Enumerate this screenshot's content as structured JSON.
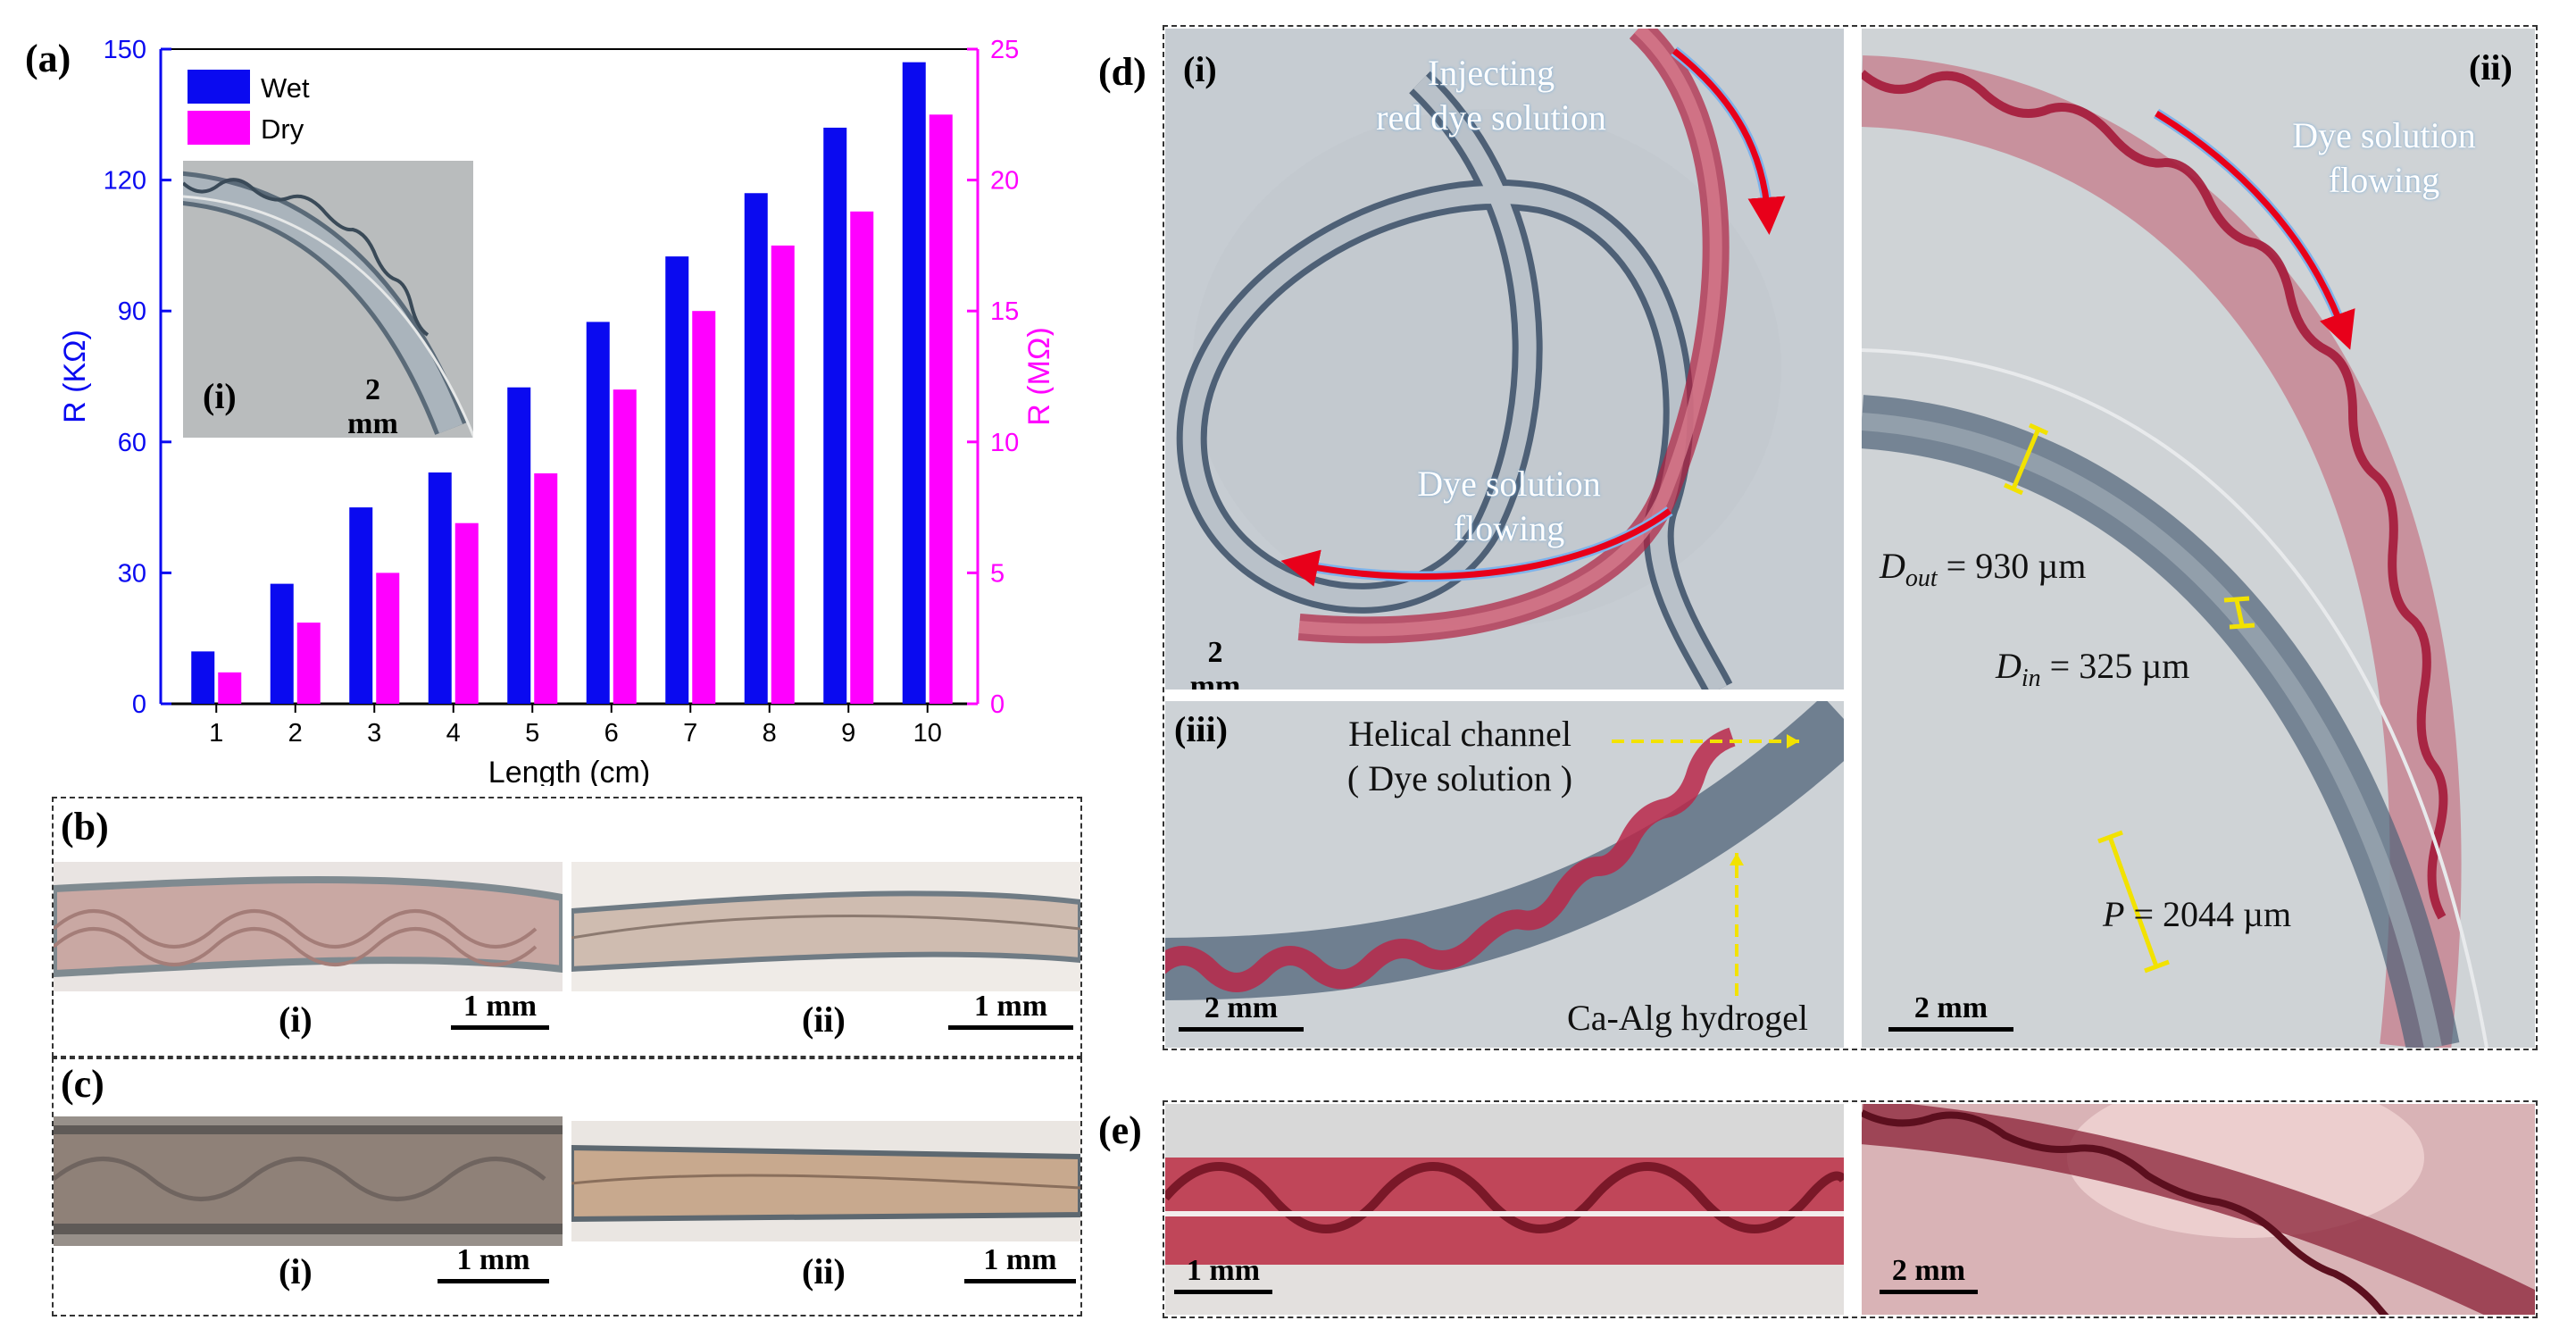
{
  "panels": {
    "a": "(a)",
    "b": "(b)",
    "c": "(c)",
    "d": "(d)",
    "e": "(e)"
  },
  "subpanels": {
    "i": "(i)",
    "ii": "(ii)",
    "iii": "(iii)"
  },
  "scale_labels": {
    "mm1": "1 mm",
    "mm2": "2 mm"
  },
  "chart_data": {
    "type": "bar",
    "categories": [
      "1",
      "2",
      "3",
      "4",
      "5",
      "6",
      "7",
      "8",
      "9",
      "10"
    ],
    "series": [
      {
        "name": "Wet",
        "axis": "left",
        "color": "#0a0af0",
        "values": [
          12,
          27.5,
          45,
          53,
          72.5,
          87.5,
          102.5,
          117,
          132,
          147
        ]
      },
      {
        "name": "Dry",
        "axis": "right",
        "color": "#ff00ff",
        "values": [
          1.2,
          3.1,
          5.0,
          6.9,
          8.8,
          12.0,
          15.0,
          17.5,
          18.8,
          22.5
        ]
      }
    ],
    "xlabel": "Length (cm)",
    "ylabel_left": "R (KΩ)",
    "ylabel_right": "R (MΩ)",
    "ylim_left": [
      0,
      150
    ],
    "ylim_right": [
      0,
      25
    ],
    "yticks_left": [
      "0",
      "30",
      "60",
      "90",
      "120",
      "150"
    ],
    "yticks_right": [
      "0",
      "5",
      "10",
      "15",
      "20",
      "25"
    ],
    "left_axis_color": "#0a0af0",
    "right_axis_color": "#ff00ff"
  },
  "inset_a": {
    "label": "(i)",
    "scale": "2 mm"
  },
  "panel_d": {
    "i_top": "Injecting\nred dye solution",
    "i_bottom": "Dye solution\nflowing",
    "ii_top": "Dye solution\nflowing",
    "d_out_sym": "D",
    "d_out_sub": "out",
    "d_out_val": " = 930 µm",
    "d_in_sym": "D",
    "d_in_sub": "in",
    "d_in_val": " = 325 µm",
    "p_sym": "P",
    "p_val": " = 2044 µm",
    "helical_channel": "Helical channel",
    "dye_solution": "( Dye solution )",
    "ca_alg": "Ca-Alg hydrogel"
  },
  "colors": {
    "wet": "#0a0af0",
    "dry": "#ff00ff",
    "dye_red": "#c0163a",
    "arrow_red": "#e8001a",
    "highlight_yellow": "#f2e200"
  }
}
